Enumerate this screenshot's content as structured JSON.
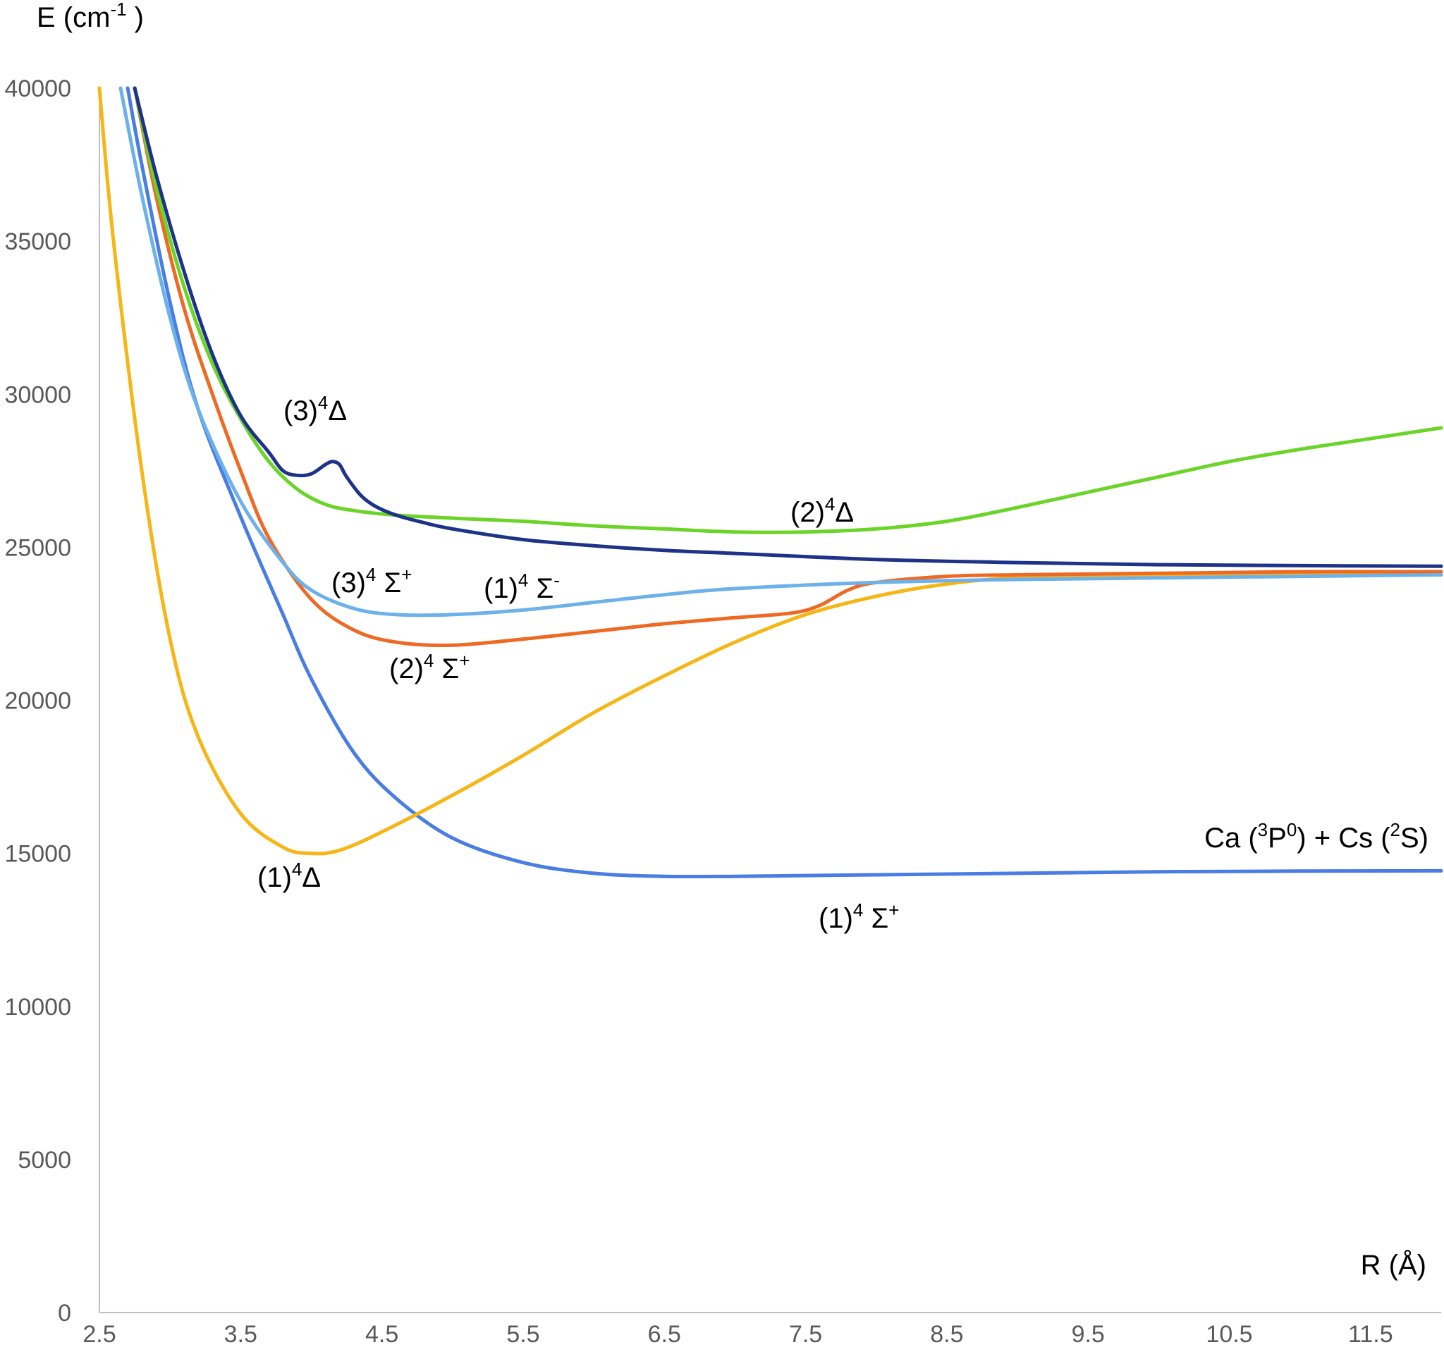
{
  "chart_data": {
    "type": "line",
    "title": "",
    "ylabel": "E (cm",
    "ylabel_exp": "-1",
    "ylabel_close": " )",
    "xlabel": "R (Å)",
    "xlim": [
      2.5,
      12.0
    ],
    "ylim": [
      0,
      40000
    ],
    "grid": false,
    "legend": "none",
    "x_ticks": [
      "2.5",
      "3.5",
      "4.5",
      "5.5",
      "6.5",
      "7.5",
      "8.5",
      "9.5",
      "10.5",
      "11.5"
    ],
    "y_ticks": [
      "0",
      "5000",
      "10000",
      "15000",
      "20000",
      "25000",
      "30000",
      "35000",
      "40000"
    ],
    "asymptote": {
      "pre": "Ca (",
      "sup1": "3",
      "mid1": "P",
      "sup2": "0",
      "mid2": ") + Cs (",
      "sup3": "2",
      "post": "S)"
    },
    "series": [
      {
        "name": "(1)4Σ+",
        "color": "#4a7de3",
        "x": [
          2.7,
          2.8,
          3.0,
          3.2,
          3.5,
          3.8,
          4.0,
          4.3,
          4.6,
          5.0,
          5.5,
          6.0,
          6.5,
          7.0,
          8.0,
          9.0,
          10.0,
          11.0,
          12.0
        ],
        "y": [
          40000,
          37500,
          33000,
          29500,
          26000,
          22800,
          20700,
          18300,
          16800,
          15500,
          14700,
          14350,
          14250,
          14250,
          14300,
          14350,
          14400,
          14420,
          14430
        ]
      },
      {
        "name": "(1)4Δ",
        "color": "#f5b616",
        "x": [
          2.5,
          2.6,
          2.8,
          3.0,
          3.2,
          3.5,
          3.8,
          4.0,
          4.2,
          4.5,
          5.0,
          5.5,
          6.0,
          6.5,
          7.0,
          7.5,
          8.0,
          8.5,
          9.0,
          10.0,
          11.0,
          12.0
        ],
        "y": [
          40000,
          35000,
          27500,
          22000,
          18800,
          16300,
          15200,
          15000,
          15100,
          15700,
          16900,
          18200,
          19600,
          20800,
          21900,
          22800,
          23400,
          23800,
          24000,
          24100,
          24150,
          24200
        ]
      },
      {
        "name": "(2)4Σ+",
        "color": "#ee6a24",
        "x": [
          2.75,
          2.9,
          3.1,
          3.3,
          3.5,
          3.7,
          4.0,
          4.3,
          4.6,
          5.0,
          5.5,
          6.0,
          6.5,
          7.0,
          7.4,
          7.6,
          7.8,
          8.0,
          8.5,
          9.0,
          10.0,
          11.0,
          12.0
        ],
        "y": [
          40000,
          36500,
          32800,
          30000,
          27500,
          25300,
          23300,
          22300,
          21900,
          21800,
          22000,
          22250,
          22500,
          22700,
          22850,
          23100,
          23600,
          23850,
          24050,
          24100,
          24150,
          24200,
          24200
        ]
      },
      {
        "name": "(3)4Σ+ / (1)4Σ-",
        "color": "#6cb1ea",
        "x": [
          2.65,
          2.8,
          3.0,
          3.2,
          3.5,
          3.8,
          4.0,
          4.3,
          4.6,
          5.0,
          5.5,
          6.0,
          6.5,
          7.0,
          8.0,
          9.0,
          10.0,
          11.0,
          12.0
        ],
        "y": [
          40000,
          36500,
          32500,
          29500,
          26500,
          24500,
          23600,
          23000,
          22800,
          22800,
          22950,
          23200,
          23450,
          23650,
          23850,
          23950,
          24000,
          24050,
          24100
        ]
      },
      {
        "name": "(2)4Δ",
        "color": "#6bd428",
        "x": [
          2.75,
          2.9,
          3.1,
          3.3,
          3.5,
          3.7,
          3.9,
          4.1,
          4.3,
          4.6,
          5.0,
          5.5,
          6.0,
          6.5,
          7.0,
          7.5,
          8.0,
          8.5,
          9.0,
          9.5,
          10.0,
          10.5,
          11.0,
          11.5,
          12.0
        ],
        "y": [
          40000,
          36800,
          33500,
          31000,
          29200,
          27800,
          26900,
          26400,
          26200,
          26050,
          25950,
          25850,
          25700,
          25600,
          25500,
          25500,
          25600,
          25850,
          26300,
          26800,
          27300,
          27800,
          28200,
          28550,
          28900
        ]
      },
      {
        "name": "(3)4Δ",
        "color": "#1e3388",
        "x": [
          2.75,
          2.9,
          3.1,
          3.3,
          3.5,
          3.7,
          3.8,
          3.9,
          4.0,
          4.1,
          4.15,
          4.2,
          4.25,
          4.35,
          4.45,
          4.6,
          4.8,
          5.0,
          5.5,
          6.0,
          6.5,
          7.0,
          8.0,
          9.0,
          10.0,
          11.0,
          12.0
        ],
        "y": [
          40000,
          37200,
          34000,
          31300,
          29300,
          28100,
          27500,
          27350,
          27400,
          27700,
          27800,
          27700,
          27300,
          26700,
          26350,
          26050,
          25800,
          25600,
          25250,
          25050,
          24900,
          24800,
          24600,
          24500,
          24430,
          24400,
          24380
        ]
      }
    ],
    "annotations": [
      {
        "pre": "(3)",
        "sup": "4",
        "post": "Δ"
      },
      {
        "pre": "(2)",
        "sup": "4",
        "post": "Δ"
      },
      {
        "pre": "(3)",
        "sup": "4",
        "post": " Σ",
        "sup2": "+"
      },
      {
        "pre": "(1)",
        "sup": "4",
        "post": " Σ",
        "sup2": "-"
      },
      {
        "pre": "(2)",
        "sup": "4",
        "post": " Σ",
        "sup2": "+"
      },
      {
        "pre": "(1)",
        "sup": "4",
        "post": "Δ"
      },
      {
        "pre": "(1)",
        "sup": "4",
        "post": " Σ",
        "sup2": "+"
      }
    ]
  }
}
